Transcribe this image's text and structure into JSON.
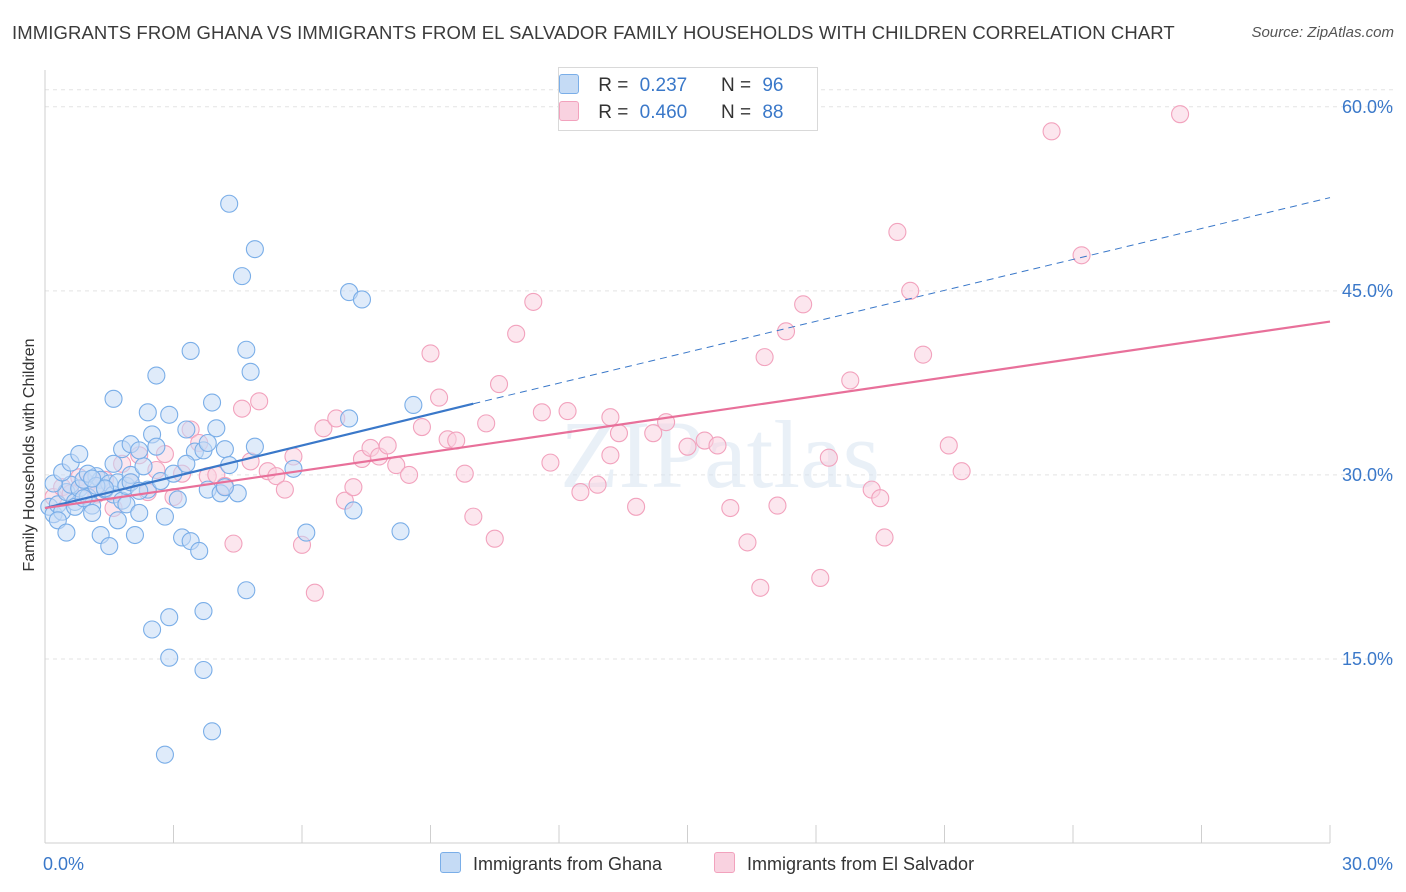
{
  "title": "IMMIGRANTS FROM GHANA VS IMMIGRANTS FROM EL SALVADOR FAMILY HOUSEHOLDS WITH CHILDREN CORRELATION CHART",
  "source": "Source: ZipAtlas.com",
  "watermark": "ZIPatlas",
  "legend": {
    "r_label": "R =",
    "n_label": "N =",
    "ghana": {
      "r": "0.237",
      "n": "96"
    },
    "elsalvador": {
      "r": "0.460",
      "n": "88"
    }
  },
  "bottom_legend": {
    "ghana": "Immigrants from Ghana",
    "elsalvador": "Immigrants from El Salvador"
  },
  "chart_data": {
    "type": "scatter",
    "title": "IMMIGRANTS FROM GHANA VS IMMIGRANTS FROM EL SALVADOR FAMILY HOUSEHOLDS WITH CHILDREN CORRELATION CHART",
    "xlabel": "",
    "ylabel": "Family Households with Children",
    "xlim": [
      0,
      30
    ],
    "ylim": [
      0,
      63
    ],
    "x_tick_labels": [
      {
        "value": 0,
        "label": "0.0%"
      },
      {
        "value": 30,
        "label": "30.0%"
      }
    ],
    "y_tick_labels": [
      {
        "value": 15,
        "label": "15.0%"
      },
      {
        "value": 30,
        "label": "30.0%"
      },
      {
        "value": 45,
        "label": "45.0%"
      },
      {
        "value": 60,
        "label": "60.0%"
      }
    ],
    "grid": true,
    "colors": {
      "ghana": "#7aaee8",
      "ghana_fill": "#c5dbf5",
      "ghana_line": "#3a78c9",
      "elsalvador": "#f2a2bd",
      "elsalvador_fill": "#f9d2e0",
      "elsalvador_line": "#e8709a"
    },
    "series": [
      {
        "name": "Immigrants from Ghana",
        "trend": {
          "x": [
            0.0,
            10.0
          ],
          "y": [
            27.3,
            35.8
          ]
        },
        "trend_extension": {
          "x": [
            10.0,
            30.0
          ],
          "y": [
            35.8,
            52.6
          ]
        },
        "points": [
          [
            0.1,
            27.4
          ],
          [
            0.2,
            26.8
          ],
          [
            0.3,
            27.6
          ],
          [
            0.4,
            27.0
          ],
          [
            0.5,
            28.6
          ],
          [
            0.6,
            29.2
          ],
          [
            0.7,
            27.8
          ],
          [
            0.8,
            28.9
          ],
          [
            0.9,
            29.6
          ],
          [
            1.0,
            28.2
          ],
          [
            1.1,
            27.5
          ],
          [
            1.2,
            29.9
          ],
          [
            1.3,
            29.6
          ],
          [
            1.4,
            28.8
          ],
          [
            1.5,
            29.3
          ],
          [
            1.6,
            28.4
          ],
          [
            1.7,
            29.4
          ],
          [
            1.8,
            27.9
          ],
          [
            1.9,
            29.1
          ],
          [
            2.0,
            30.0
          ],
          [
            0.2,
            29.3
          ],
          [
            0.4,
            30.2
          ],
          [
            0.6,
            31.0
          ],
          [
            0.8,
            31.7
          ],
          [
            1.0,
            30.1
          ],
          [
            1.2,
            29.1
          ],
          [
            1.4,
            28.9
          ],
          [
            1.6,
            30.9
          ],
          [
            1.8,
            32.1
          ],
          [
            2.0,
            32.5
          ],
          [
            0.3,
            26.3
          ],
          [
            0.5,
            25.3
          ],
          [
            0.7,
            27.4
          ],
          [
            0.9,
            28.1
          ],
          [
            1.1,
            26.9
          ],
          [
            1.3,
            25.1
          ],
          [
            1.5,
            24.2
          ],
          [
            1.7,
            26.3
          ],
          [
            1.9,
            27.6
          ],
          [
            2.1,
            25.1
          ],
          [
            2.0,
            29.4
          ],
          [
            2.2,
            26.9
          ],
          [
            2.3,
            30.7
          ],
          [
            2.2,
            32.0
          ],
          [
            2.4,
            28.8
          ],
          [
            2.5,
            33.3
          ],
          [
            2.6,
            32.3
          ],
          [
            2.7,
            29.5
          ],
          [
            2.8,
            26.6
          ],
          [
            2.9,
            34.9
          ],
          [
            3.0,
            30.1
          ],
          [
            3.1,
            28.0
          ],
          [
            3.2,
            24.9
          ],
          [
            3.3,
            33.7
          ],
          [
            3.4,
            24.6
          ],
          [
            3.5,
            31.9
          ],
          [
            3.6,
            23.8
          ],
          [
            3.7,
            32.0
          ],
          [
            3.8,
            28.8
          ],
          [
            3.9,
            35.9
          ],
          [
            4.0,
            33.8
          ],
          [
            4.1,
            28.5
          ],
          [
            4.2,
            32.1
          ],
          [
            4.3,
            30.8
          ],
          [
            4.5,
            28.5
          ],
          [
            4.6,
            46.2
          ],
          [
            4.7,
            40.2
          ],
          [
            4.8,
            38.4
          ],
          [
            2.4,
            35.1
          ],
          [
            2.6,
            38.1
          ],
          [
            1.6,
            36.2
          ],
          [
            3.4,
            40.1
          ],
          [
            4.3,
            52.1
          ],
          [
            4.9,
            48.4
          ],
          [
            3.8,
            32.6
          ],
          [
            2.5,
            17.4
          ],
          [
            2.9,
            18.4
          ],
          [
            3.7,
            18.9
          ],
          [
            2.9,
            15.1
          ],
          [
            3.7,
            14.1
          ],
          [
            3.9,
            9.1
          ],
          [
            2.8,
            7.2
          ],
          [
            4.7,
            20.6
          ],
          [
            4.2,
            29.0
          ],
          [
            5.8,
            30.5
          ],
          [
            6.1,
            25.3
          ],
          [
            7.1,
            44.9
          ],
          [
            7.4,
            44.3
          ],
          [
            7.1,
            34.6
          ],
          [
            7.2,
            27.1
          ],
          [
            8.3,
            25.4
          ],
          [
            8.6,
            35.7
          ],
          [
            4.9,
            32.3
          ],
          [
            3.3,
            30.9
          ],
          [
            2.2,
            28.7
          ],
          [
            1.1,
            29.7
          ]
        ]
      },
      {
        "name": "Immigrants from El Salvador",
        "trend": {
          "x": [
            0.0,
            30.0
          ],
          "y": [
            27.3,
            42.5
          ]
        },
        "points": [
          [
            0.2,
            28.2
          ],
          [
            0.4,
            29.0
          ],
          [
            0.6,
            28.5
          ],
          [
            0.8,
            29.8
          ],
          [
            1.0,
            29.3
          ],
          [
            1.2,
            28.4
          ],
          [
            1.4,
            29.6
          ],
          [
            1.6,
            27.3
          ],
          [
            1.8,
            30.9
          ],
          [
            2.0,
            29.4
          ],
          [
            2.2,
            31.6
          ],
          [
            2.4,
            28.6
          ],
          [
            2.6,
            30.4
          ],
          [
            2.8,
            31.7
          ],
          [
            3.0,
            28.2
          ],
          [
            3.2,
            30.1
          ],
          [
            3.4,
            33.7
          ],
          [
            3.6,
            32.6
          ],
          [
            3.8,
            29.9
          ],
          [
            4.0,
            30.0
          ],
          [
            4.2,
            29.1
          ],
          [
            4.4,
            24.4
          ],
          [
            4.6,
            35.4
          ],
          [
            4.8,
            31.1
          ],
          [
            5.0,
            36.0
          ],
          [
            5.2,
            30.3
          ],
          [
            5.4,
            29.9
          ],
          [
            5.6,
            28.8
          ],
          [
            5.8,
            31.5
          ],
          [
            6.0,
            24.3
          ],
          [
            6.3,
            20.4
          ],
          [
            6.5,
            33.8
          ],
          [
            6.8,
            34.6
          ],
          [
            7.0,
            27.9
          ],
          [
            7.2,
            29.0
          ],
          [
            7.4,
            31.3
          ],
          [
            7.6,
            32.2
          ],
          [
            7.8,
            31.5
          ],
          [
            8.0,
            32.4
          ],
          [
            8.2,
            30.8
          ],
          [
            8.5,
            30.0
          ],
          [
            8.8,
            33.9
          ],
          [
            9.0,
            39.9
          ],
          [
            9.2,
            36.3
          ],
          [
            9.4,
            32.9
          ],
          [
            9.6,
            32.8
          ],
          [
            9.8,
            30.1
          ],
          [
            10.0,
            26.6
          ],
          [
            10.3,
            34.2
          ],
          [
            10.5,
            24.8
          ],
          [
            10.6,
            37.4
          ],
          [
            11.0,
            41.5
          ],
          [
            11.4,
            44.1
          ],
          [
            11.6,
            35.1
          ],
          [
            11.8,
            31.0
          ],
          [
            12.2,
            35.2
          ],
          [
            12.5,
            28.6
          ],
          [
            12.9,
            29.2
          ],
          [
            13.2,
            31.6
          ],
          [
            13.4,
            33.4
          ],
          [
            13.8,
            27.4
          ],
          [
            14.2,
            33.4
          ],
          [
            14.5,
            34.3
          ],
          [
            15.0,
            32.3
          ],
          [
            15.4,
            32.8
          ],
          [
            15.7,
            32.4
          ],
          [
            16.0,
            27.3
          ],
          [
            16.4,
            24.5
          ],
          [
            16.8,
            39.6
          ],
          [
            17.1,
            27.5
          ],
          [
            17.3,
            41.7
          ],
          [
            17.7,
            43.9
          ],
          [
            16.7,
            20.8
          ],
          [
            18.1,
            21.6
          ],
          [
            18.3,
            31.4
          ],
          [
            18.8,
            37.7
          ],
          [
            19.3,
            28.8
          ],
          [
            19.5,
            28.1
          ],
          [
            19.6,
            24.9
          ],
          [
            19.9,
            49.8
          ],
          [
            20.2,
            45.0
          ],
          [
            20.5,
            39.8
          ],
          [
            21.1,
            32.4
          ],
          [
            21.4,
            30.3
          ],
          [
            23.5,
            58.0
          ],
          [
            24.2,
            47.9
          ],
          [
            26.5,
            59.4
          ],
          [
            13.2,
            34.7
          ]
        ]
      }
    ]
  }
}
